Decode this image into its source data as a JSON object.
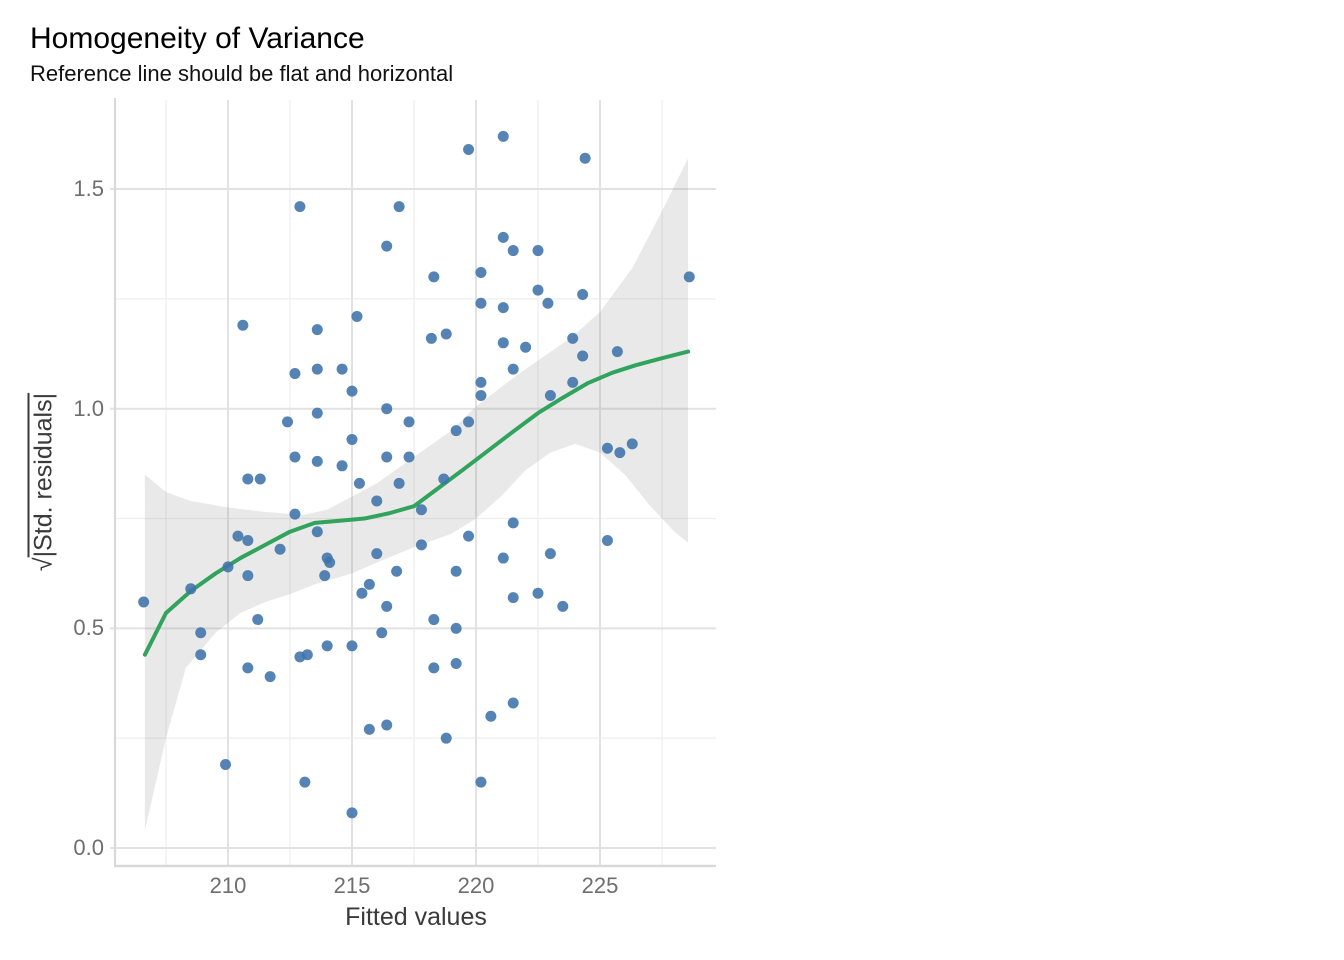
{
  "title": "Homogeneity of Variance",
  "subtitle": "Reference line should be flat and horizontal",
  "chart_data": {
    "type": "scatter",
    "title": "Homogeneity of Variance",
    "subtitle": "Reference line should be flat and horizontal",
    "xlabel": "Fitted values",
    "ylabel_sqrt": "√",
    "ylabel_rest": "|Std. residuals|",
    "xlim": [
      205.444,
      229.677
    ],
    "ylim": [
      -0.0387,
      1.7027
    ],
    "x_ticks": [
      210,
      215,
      220,
      225
    ],
    "x_tick_labels": [
      "210",
      "215",
      "220",
      "225"
    ],
    "x_minor": [
      207.5,
      212.5,
      217.5,
      222.5,
      227.5
    ],
    "y_ticks": [
      0,
      0.5,
      1,
      1.5
    ],
    "y_tick_labels": [
      "0.0",
      "0.5",
      "1.0",
      "1.5"
    ],
    "y_minor": [
      0.25,
      0.75,
      1.25
    ],
    "grid": true,
    "legend": "none",
    "points": [
      [
        212.9,
        1.46
      ],
      [
        216.9,
        1.46
      ],
      [
        216.4,
        1.37
      ],
      [
        215.2,
        1.21
      ],
      [
        210.6,
        1.19
      ],
      [
        213.6,
        1.18
      ],
      [
        221.1,
        1.62
      ],
      [
        219.7,
        1.59
      ],
      [
        224.4,
        1.57
      ],
      [
        221.1,
        1.39
      ],
      [
        221.5,
        1.36
      ],
      [
        222.5,
        1.36
      ],
      [
        218.3,
        1.3
      ],
      [
        220.2,
        1.31
      ],
      [
        222.5,
        1.27
      ],
      [
        222.9,
        1.24
      ],
      [
        224.3,
        1.26
      ],
      [
        228.6,
        1.3
      ],
      [
        220.2,
        1.24
      ],
      [
        221.1,
        1.23
      ],
      [
        218.2,
        1.16
      ],
      [
        218.8,
        1.17
      ],
      [
        221.1,
        1.15
      ],
      [
        222.0,
        1.14
      ],
      [
        223.9,
        1.16
      ],
      [
        225.7,
        1.13
      ],
      [
        224.3,
        1.12
      ],
      [
        212.7,
        1.08
      ],
      [
        213.6,
        1.09
      ],
      [
        214.6,
        1.09
      ],
      [
        215.0,
        1.04
      ],
      [
        216.4,
        1.0
      ],
      [
        212.4,
        0.97
      ],
      [
        213.6,
        0.99
      ],
      [
        217.3,
        0.97
      ],
      [
        215.0,
        0.93
      ],
      [
        212.7,
        0.89
      ],
      [
        213.6,
        0.88
      ],
      [
        214.6,
        0.87
      ],
      [
        216.4,
        0.89
      ],
      [
        217.3,
        0.89
      ],
      [
        210.8,
        0.84
      ],
      [
        211.3,
        0.84
      ],
      [
        215.3,
        0.83
      ],
      [
        216.9,
        0.83
      ],
      [
        216.0,
        0.79
      ],
      [
        212.7,
        0.76
      ],
      [
        213.6,
        0.72
      ],
      [
        210.4,
        0.71
      ],
      [
        210.8,
        0.7
      ],
      [
        212.1,
        0.68
      ],
      [
        214.0,
        0.66
      ],
      [
        214.1,
        0.65
      ],
      [
        213.9,
        0.62
      ],
      [
        216.0,
        0.67
      ],
      [
        216.8,
        0.63
      ],
      [
        210.0,
        0.64
      ],
      [
        210.8,
        0.62
      ],
      [
        215.7,
        0.6
      ],
      [
        215.4,
        0.58
      ],
      [
        208.5,
        0.59
      ],
      [
        206.6,
        0.56
      ],
      [
        216.4,
        0.55
      ],
      [
        221.5,
        1.09
      ],
      [
        220.2,
        1.06
      ],
      [
        220.2,
        1.03
      ],
      [
        223.9,
        1.06
      ],
      [
        223.0,
        1.03
      ],
      [
        219.2,
        0.95
      ],
      [
        219.7,
        0.97
      ],
      [
        218.7,
        0.84
      ],
      [
        217.8,
        0.77
      ],
      [
        225.3,
        0.91
      ],
      [
        225.8,
        0.9
      ],
      [
        226.3,
        0.92
      ],
      [
        217.8,
        0.69
      ],
      [
        219.7,
        0.71
      ],
      [
        221.5,
        0.74
      ],
      [
        221.1,
        0.66
      ],
      [
        225.3,
        0.7
      ],
      [
        223.0,
        0.67
      ],
      [
        219.2,
        0.63
      ],
      [
        221.5,
        0.57
      ],
      [
        222.5,
        0.58
      ],
      [
        223.5,
        0.55
      ],
      [
        211.2,
        0.52
      ],
      [
        208.9,
        0.49
      ],
      [
        208.9,
        0.44
      ],
      [
        210.8,
        0.41
      ],
      [
        211.7,
        0.39
      ],
      [
        212.9,
        0.435
      ],
      [
        213.2,
        0.44
      ],
      [
        214.0,
        0.46
      ],
      [
        215.0,
        0.46
      ],
      [
        216.2,
        0.49
      ],
      [
        215.7,
        0.27
      ],
      [
        216.4,
        0.28
      ],
      [
        209.9,
        0.19
      ],
      [
        213.1,
        0.15
      ],
      [
        215.0,
        0.08
      ],
      [
        218.3,
        0.52
      ],
      [
        219.2,
        0.5
      ],
      [
        218.3,
        0.41
      ],
      [
        219.2,
        0.42
      ],
      [
        220.6,
        0.3
      ],
      [
        221.5,
        0.33
      ],
      [
        218.8,
        0.25
      ],
      [
        220.2,
        0.15
      ]
    ],
    "smooth_line": [
      [
        206.65,
        0.44
      ],
      [
        207.5,
        0.535
      ],
      [
        208.5,
        0.585
      ],
      [
        209.5,
        0.625
      ],
      [
        210.5,
        0.66
      ],
      [
        211.5,
        0.69
      ],
      [
        212.5,
        0.72
      ],
      [
        213.5,
        0.74
      ],
      [
        214.5,
        0.745
      ],
      [
        215.5,
        0.75
      ],
      [
        216.5,
        0.762
      ],
      [
        217.5,
        0.778
      ],
      [
        218.5,
        0.82
      ],
      [
        219.5,
        0.862
      ],
      [
        220.5,
        0.905
      ],
      [
        221.5,
        0.948
      ],
      [
        222.5,
        0.99
      ],
      [
        223.5,
        1.025
      ],
      [
        224.5,
        1.058
      ],
      [
        225.5,
        1.082
      ],
      [
        226.5,
        1.1
      ],
      [
        227.5,
        1.115
      ],
      [
        228.55,
        1.13
      ]
    ],
    "band_upper": [
      [
        206.65,
        0.85
      ],
      [
        207.5,
        0.81
      ],
      [
        208.5,
        0.79
      ],
      [
        210,
        0.775
      ],
      [
        211.5,
        0.765
      ],
      [
        213,
        0.758
      ],
      [
        214,
        0.77
      ],
      [
        215,
        0.8
      ],
      [
        216,
        0.83
      ],
      [
        217.5,
        0.89
      ],
      [
        219,
        0.95
      ],
      [
        220,
        1.005
      ],
      [
        221.5,
        1.07
      ],
      [
        222.5,
        1.11
      ],
      [
        223.8,
        1.16
      ],
      [
        225,
        1.22
      ],
      [
        226.3,
        1.32
      ],
      [
        227.5,
        1.45
      ],
      [
        228.55,
        1.57
      ]
    ],
    "band_lower": [
      [
        206.65,
        0.04
      ],
      [
        207.5,
        0.25
      ],
      [
        208.3,
        0.41
      ],
      [
        209.5,
        0.49
      ],
      [
        210.5,
        0.535
      ],
      [
        211.5,
        0.56
      ],
      [
        212.5,
        0.578
      ],
      [
        213.5,
        0.6
      ],
      [
        215,
        0.625
      ],
      [
        216,
        0.65
      ],
      [
        217.5,
        0.685
      ],
      [
        219,
        0.715
      ],
      [
        220,
        0.75
      ],
      [
        221,
        0.8
      ],
      [
        222,
        0.86
      ],
      [
        223,
        0.9
      ],
      [
        224,
        0.92
      ],
      [
        225,
        0.9
      ],
      [
        226,
        0.85
      ],
      [
        227,
        0.78
      ],
      [
        228,
        0.72
      ],
      [
        228.55,
        0.695
      ]
    ],
    "colors": {
      "point": "#3e73aa",
      "line": "#31a35c",
      "band": "rgba(125,125,125,0.17)",
      "grid_major": "#e2e2e2",
      "grid_minor": "#efefef",
      "axis_line": "#d9d9d9",
      "tick_label": "#6e6e6e",
      "axis_title": "#3a3a3a"
    }
  }
}
